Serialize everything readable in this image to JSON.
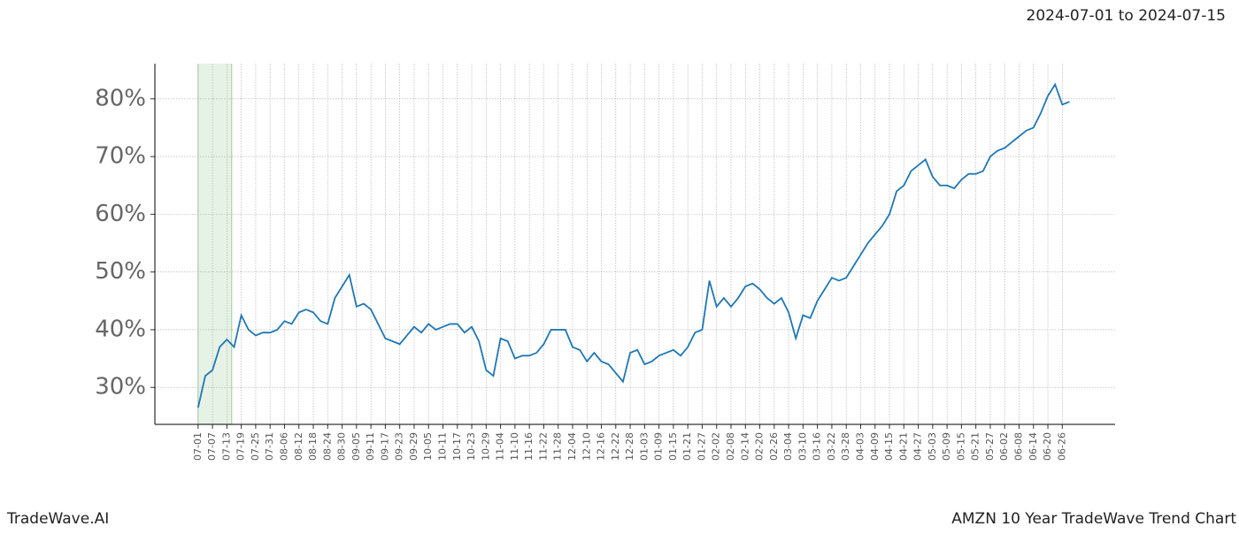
{
  "chart_data": {
    "type": "line",
    "title": "2024-07-01 to 2024-07-15",
    "footer_left": "TradeWave.AI",
    "footer_right": "AMZN 10 Year TradeWave Trend Chart",
    "highlight": {
      "x": [
        0,
        14
      ],
      "color": "#d6ead6"
    },
    "x": [
      0,
      3,
      6,
      9,
      12,
      15,
      18,
      21,
      24,
      27,
      30,
      33,
      36,
      39,
      42,
      45,
      48,
      51,
      54,
      57,
      60,
      63,
      66,
      69,
      72,
      75,
      78,
      81,
      84,
      87,
      90,
      93,
      96,
      99,
      102,
      105,
      108,
      111,
      114,
      117,
      120,
      123,
      126,
      129,
      132,
      135,
      138,
      141,
      144,
      147,
      150,
      153,
      156,
      159,
      162,
      165,
      168,
      171,
      174,
      177,
      180,
      183,
      186,
      189,
      192,
      195,
      198,
      201,
      204,
      207,
      210,
      213,
      216,
      219,
      222,
      225,
      228,
      231,
      234,
      237,
      240,
      243,
      246,
      249,
      252,
      255,
      258,
      261,
      264,
      267,
      270,
      273,
      276,
      279,
      282,
      285,
      288,
      291,
      294,
      297,
      300,
      303,
      306,
      309,
      312,
      315,
      318,
      321,
      324,
      327,
      330,
      333,
      336,
      339,
      342,
      345,
      348,
      351,
      354,
      357,
      360,
      363
    ],
    "series": [
      {
        "color": "#1f77b4",
        "values": [
          26.5,
          32,
          33,
          37,
          38.3,
          37,
          42.5,
          40,
          39,
          39.5,
          39.5,
          40,
          41.5,
          41,
          43,
          43.5,
          43,
          41.5,
          41,
          45.5,
          47.5,
          49.5,
          44,
          44.5,
          43.5,
          41,
          38.5,
          38,
          37.5,
          39,
          40.5,
          39.5,
          41,
          40,
          40.5,
          41,
          41,
          39.5,
          40.5,
          38,
          33,
          32,
          38.5,
          38,
          35,
          35.5,
          35.5,
          36,
          37.5,
          40,
          40,
          40,
          37,
          36.5,
          34.5,
          36,
          34.5,
          34,
          32.5,
          31,
          36,
          36.5,
          34,
          34.5,
          35.5,
          36,
          36.5,
          35.5,
          37,
          39.5,
          40,
          48.5,
          44,
          45.5,
          44,
          45.5,
          47.5,
          48,
          47,
          45.5,
          44.5,
          45.5,
          43,
          38.5,
          42.5,
          42,
          45,
          47,
          49,
          48.5,
          49,
          51,
          53,
          55,
          56.5,
          58,
          60,
          64,
          65,
          67.5,
          68.5,
          69.5,
          66.5,
          65,
          65,
          64.5,
          66,
          67,
          67,
          67.5,
          70,
          71,
          71.5,
          72.5,
          73.5,
          74.5,
          75,
          77.5,
          80.5,
          82.5,
          79,
          79.5
        ]
      }
    ],
    "xlim": [
      -18,
      382
    ],
    "ylim": [
      23.6,
      86.1
    ],
    "grid": true,
    "xticks": [
      {
        "value": 0,
        "label": "07-01"
      },
      {
        "value": 6,
        "label": "07-07"
      },
      {
        "value": 12,
        "label": "07-13"
      },
      {
        "value": 18,
        "label": "07-19"
      },
      {
        "value": 24,
        "label": "07-25"
      },
      {
        "value": 30,
        "label": "07-31"
      },
      {
        "value": 36,
        "label": "08-06"
      },
      {
        "value": 42,
        "label": "08-12"
      },
      {
        "value": 48,
        "label": "08-18"
      },
      {
        "value": 54,
        "label": "08-24"
      },
      {
        "value": 60,
        "label": "08-30"
      },
      {
        "value": 66,
        "label": "09-05"
      },
      {
        "value": 72,
        "label": "09-11"
      },
      {
        "value": 78,
        "label": "09-17"
      },
      {
        "value": 84,
        "label": "09-23"
      },
      {
        "value": 90,
        "label": "09-29"
      },
      {
        "value": 96,
        "label": "10-05"
      },
      {
        "value": 102,
        "label": "10-11"
      },
      {
        "value": 108,
        "label": "10-17"
      },
      {
        "value": 114,
        "label": "10-23"
      },
      {
        "value": 120,
        "label": "10-29"
      },
      {
        "value": 126,
        "label": "11-04"
      },
      {
        "value": 132,
        "label": "11-10"
      },
      {
        "value": 138,
        "label": "11-16"
      },
      {
        "value": 144,
        "label": "11-22"
      },
      {
        "value": 150,
        "label": "11-28"
      },
      {
        "value": 156,
        "label": "12-04"
      },
      {
        "value": 162,
        "label": "12-10"
      },
      {
        "value": 168,
        "label": "12-16"
      },
      {
        "value": 174,
        "label": "12-22"
      },
      {
        "value": 180,
        "label": "12-28"
      },
      {
        "value": 186,
        "label": "01-03"
      },
      {
        "value": 192,
        "label": "01-09"
      },
      {
        "value": 198,
        "label": "01-15"
      },
      {
        "value": 204,
        "label": "01-21"
      },
      {
        "value": 210,
        "label": "01-27"
      },
      {
        "value": 216,
        "label": "02-02"
      },
      {
        "value": 222,
        "label": "02-08"
      },
      {
        "value": 228,
        "label": "02-14"
      },
      {
        "value": 234,
        "label": "02-20"
      },
      {
        "value": 240,
        "label": "02-26"
      },
      {
        "value": 246,
        "label": "03-04"
      },
      {
        "value": 252,
        "label": "03-10"
      },
      {
        "value": 258,
        "label": "03-16"
      },
      {
        "value": 264,
        "label": "03-22"
      },
      {
        "value": 270,
        "label": "03-28"
      },
      {
        "value": 276,
        "label": "04-03"
      },
      {
        "value": 282,
        "label": "04-09"
      },
      {
        "value": 288,
        "label": "04-15"
      },
      {
        "value": 294,
        "label": "04-21"
      },
      {
        "value": 300,
        "label": "04-27"
      },
      {
        "value": 306,
        "label": "05-03"
      },
      {
        "value": 312,
        "label": "05-09"
      },
      {
        "value": 318,
        "label": "05-15"
      },
      {
        "value": 324,
        "label": "05-21"
      },
      {
        "value": 330,
        "label": "05-27"
      },
      {
        "value": 336,
        "label": "06-02"
      },
      {
        "value": 342,
        "label": "06-08"
      },
      {
        "value": 348,
        "label": "06-14"
      },
      {
        "value": 354,
        "label": "06-20"
      },
      {
        "value": 360,
        "label": "06-26"
      }
    ],
    "yticks": [
      {
        "value": 30,
        "label": "30%"
      },
      {
        "value": 40,
        "label": "40%"
      },
      {
        "value": 50,
        "label": "50%"
      },
      {
        "value": 60,
        "label": "60%"
      },
      {
        "value": 70,
        "label": "70%"
      },
      {
        "value": 80,
        "label": "80%"
      }
    ]
  }
}
